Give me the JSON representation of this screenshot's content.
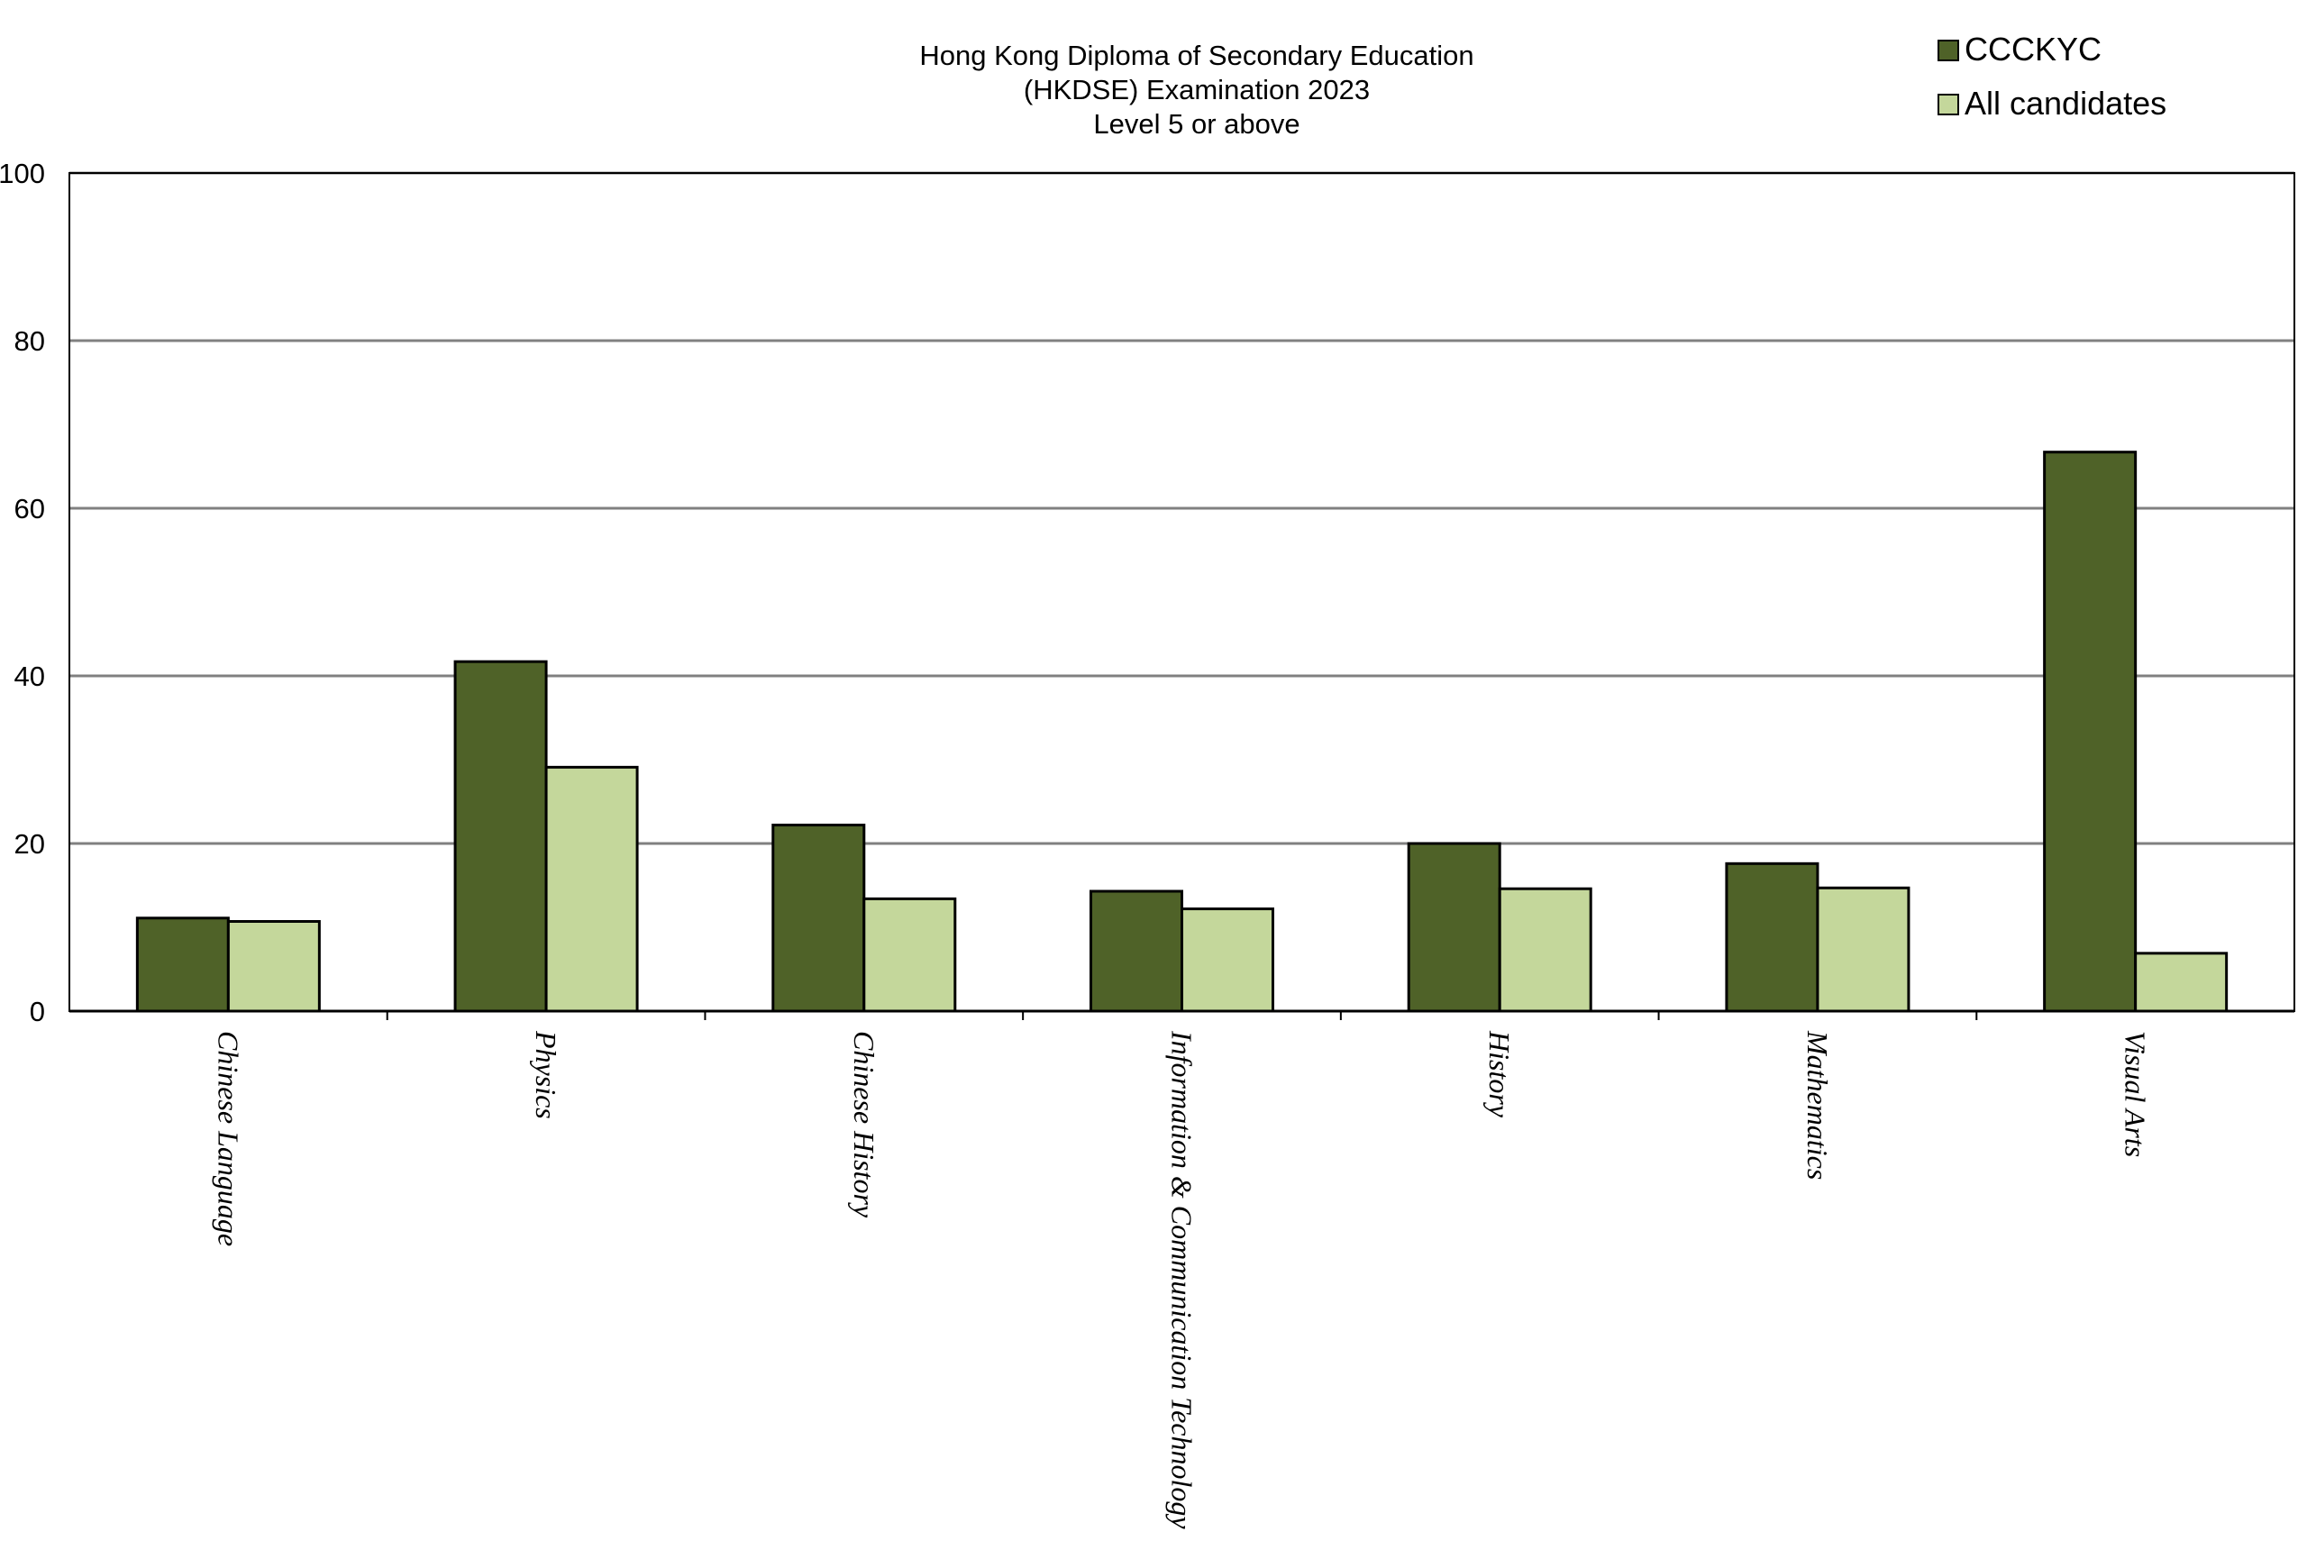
{
  "chart_data": {
    "type": "bar",
    "title": [
      "Hong Kong Diploma of Secondary Education",
      "(HKDSE) Examination 2023",
      "Level 5 or above"
    ],
    "xlabel": "",
    "ylabel": "",
    "ylim": [
      0,
      100
    ],
    "yticks": [
      "0",
      "20",
      "40",
      "60",
      "80",
      "100"
    ],
    "grid": true,
    "legend_position": "top-right",
    "categories": [
      "Chinese Language",
      "Physics",
      "Chinese History",
      "Information & Communication Technology",
      "History",
      "Mathematics",
      "Visual Arts"
    ],
    "series": [
      {
        "name": "CCCKYC",
        "color": "#4f6228",
        "values": [
          11.1,
          41.7,
          22.2,
          14.3,
          20.0,
          17.6,
          66.7
        ]
      },
      {
        "name": "All candidates",
        "color": "#c4d79b",
        "values": [
          10.7,
          29.1,
          13.4,
          12.2,
          14.6,
          14.7,
          6.9
        ]
      }
    ]
  }
}
